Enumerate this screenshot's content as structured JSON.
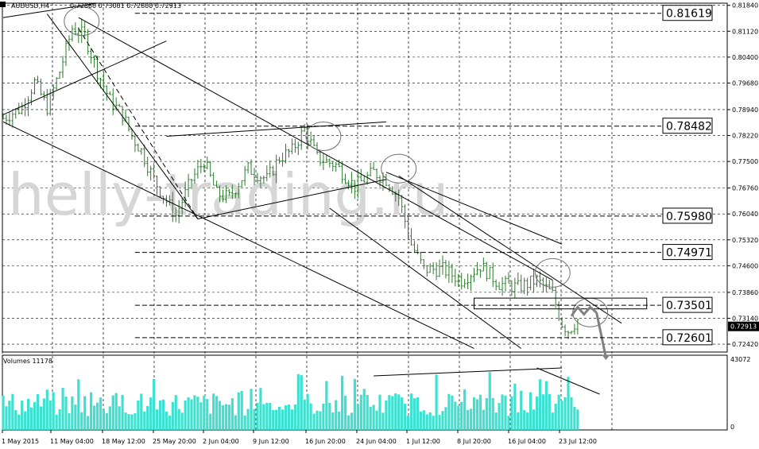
{
  "header": {
    "symbol": "AUDUSD,H4",
    "ohlc": "0.72860 0.73001 0.72800 0.72913"
  },
  "watermark": "helly-trading.ru",
  "volume_header": {
    "label": "Volumes 11178"
  },
  "colors": {
    "background": "#ffffff",
    "bar": "#2f7a2f",
    "grid": "#000000",
    "volume": "#40e0d0",
    "arrow": "#808080",
    "current_price_bg": "#000000"
  },
  "chart_data": [
    {
      "type": "bar",
      "title": "AUDUSD,H4",
      "ylim": [
        0.722,
        0.819
      ],
      "y_ticks": [
        "0.81840",
        "0.81120",
        "0.80400",
        "0.79680",
        "0.78940",
        "0.78220",
        "0.77500",
        "0.76760",
        "0.76040",
        "0.75320",
        "0.74600",
        "0.73860",
        "0.73140",
        "0.72420"
      ],
      "x_labels": [
        "1 May 2015",
        "11 May 04:00",
        "18 May 12:00",
        "25 May 20:00",
        "2 Jun 04:00",
        "9 Jun 12:00",
        "16 Jun 20:00",
        "24 Jun 04:00",
        "1 Jul 12:00",
        "8 Jul 20:00",
        "16 Jul 04:00",
        "23 Jul 12:00"
      ],
      "current_price": "0.72913",
      "levels": [
        {
          "value": 0.81619,
          "label": "0.81619"
        },
        {
          "value": 0.78482,
          "label": "0.78482"
        },
        {
          "value": 0.7598,
          "label": "0.75980"
        },
        {
          "value": 0.74971,
          "label": "0.74971"
        },
        {
          "value": 0.73501,
          "label": "0.73501"
        },
        {
          "value": 0.72601,
          "label": "0.72601"
        }
      ],
      "anchors": [
        [
          0,
          0.787
        ],
        [
          6,
          0.79
        ],
        [
          10,
          0.797
        ],
        [
          14,
          0.79
        ],
        [
          18,
          0.8
        ],
        [
          22,
          0.812
        ],
        [
          26,
          0.81
        ],
        [
          30,
          0.8
        ],
        [
          34,
          0.792
        ],
        [
          38,
          0.788
        ],
        [
          41,
          0.782
        ],
        [
          44,
          0.778
        ],
        [
          48,
          0.77
        ],
        [
          52,
          0.764
        ],
        [
          55,
          0.76
        ],
        [
          60,
          0.77
        ],
        [
          64,
          0.775
        ],
        [
          68,
          0.766
        ],
        [
          72,
          0.765
        ],
        [
          78,
          0.773
        ],
        [
          84,
          0.77
        ],
        [
          88,
          0.776
        ],
        [
          92,
          0.778
        ],
        [
          96,
          0.784
        ],
        [
          100,
          0.776
        ],
        [
          106,
          0.774
        ],
        [
          112,
          0.768
        ],
        [
          118,
          0.772
        ],
        [
          122,
          0.77
        ],
        [
          126,
          0.765
        ],
        [
          130,
          0.752
        ],
        [
          134,
          0.745
        ],
        [
          140,
          0.745
        ],
        [
          146,
          0.742
        ],
        [
          152,
          0.746
        ],
        [
          158,
          0.741
        ],
        [
          164,
          0.74
        ],
        [
          170,
          0.742
        ],
        [
          175,
          0.738
        ],
        [
          178,
          0.73
        ],
        [
          180,
          0.728
        ],
        [
          183,
          0.731
        ]
      ]
    },
    {
      "type": "bar",
      "title": "Volumes 11178",
      "ylim": [
        0,
        43072
      ],
      "y_ticks": [
        "43072",
        "0"
      ]
    }
  ]
}
